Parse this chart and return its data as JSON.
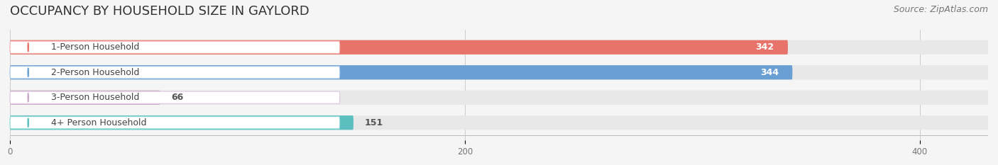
{
  "title": "OCCUPANCY BY HOUSEHOLD SIZE IN GAYLORD",
  "source": "Source: ZipAtlas.com",
  "categories": [
    "1-Person Household",
    "2-Person Household",
    "3-Person Household",
    "4+ Person Household"
  ],
  "values": [
    342,
    344,
    66,
    151
  ],
  "bar_colors": [
    "#E8736A",
    "#6A9FD4",
    "#C9A8C8",
    "#5BBFBF"
  ],
  "label_bg_colors": [
    "#F2B3AF",
    "#A8C8E8",
    "#DCC8E0",
    "#90D8D8"
  ],
  "background_color": "#f5f5f5",
  "bar_bg_color": "#e8e8e8",
  "xlim": [
    0,
    430
  ],
  "xticks": [
    0,
    200,
    400
  ],
  "bar_height": 0.55,
  "title_fontsize": 13,
  "source_fontsize": 9,
  "label_fontsize": 9,
  "value_fontsize": 9
}
